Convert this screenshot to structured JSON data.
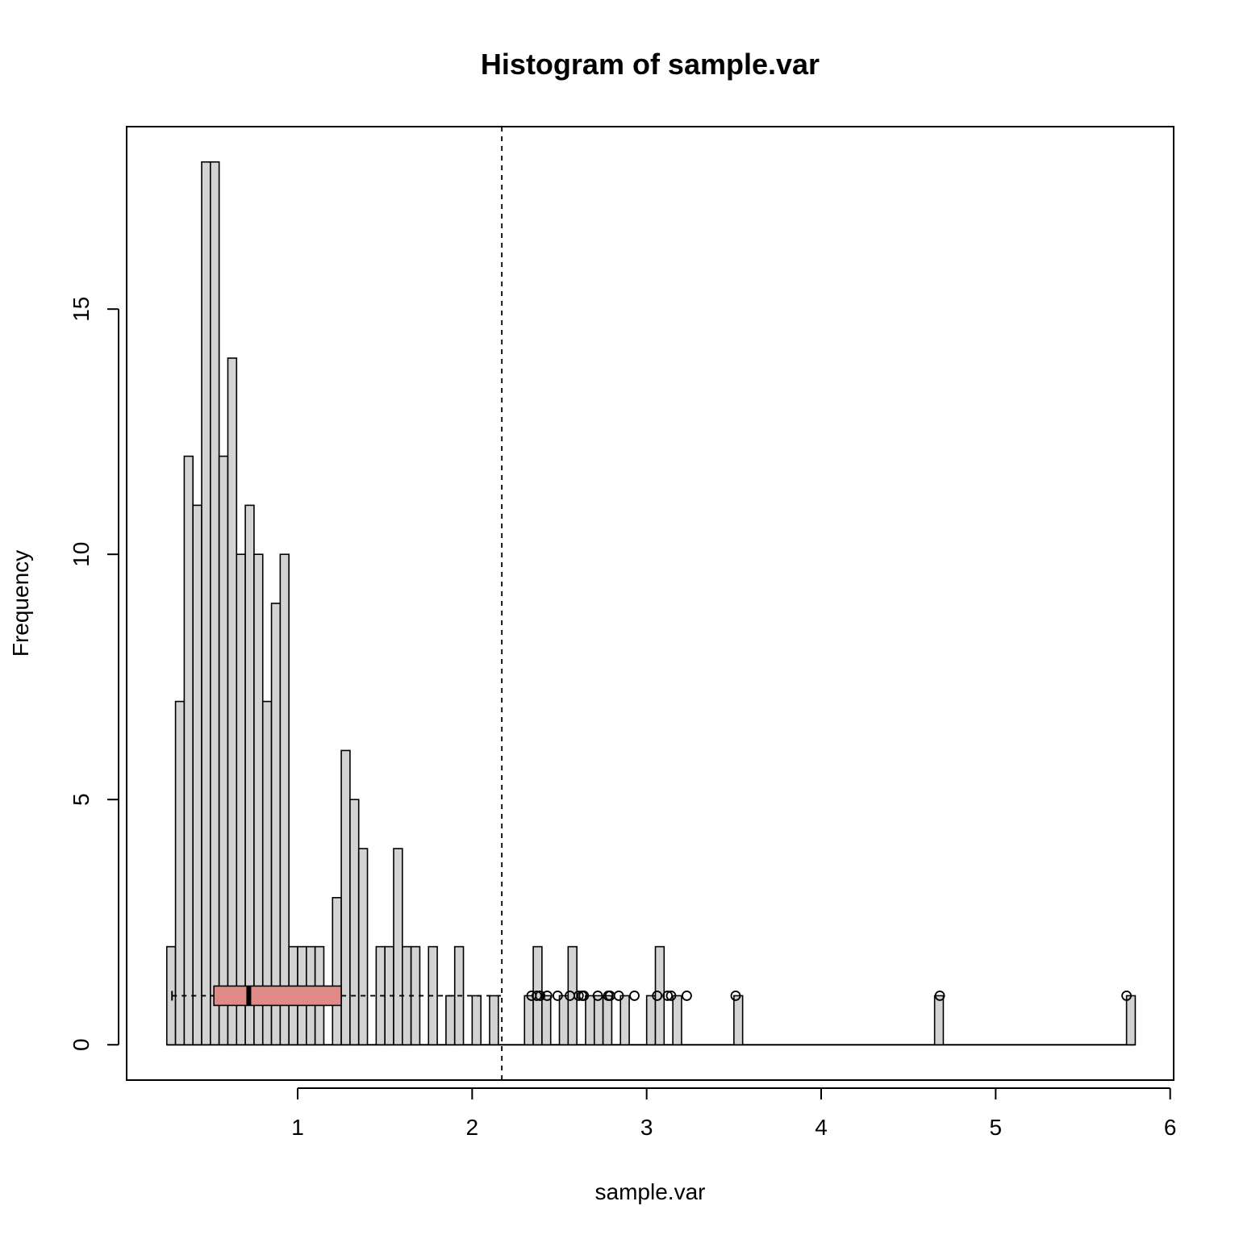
{
  "chart_data": {
    "type": "bar",
    "title": "Histogram of sample.var",
    "xlabel": "sample.var",
    "ylabel": "Frequency",
    "xlim": [
      0.02,
      6.02
    ],
    "ylim": [
      -0.72,
      18.72
    ],
    "x_ticks": [
      1,
      2,
      3,
      4,
      5,
      6
    ],
    "y_ticks": [
      0,
      5,
      10,
      15
    ],
    "bin_width": 0.05,
    "bins_start": 0.25,
    "counts": [
      2,
      7,
      12,
      11,
      18,
      18,
      12,
      14,
      10,
      11,
      10,
      7,
      9,
      10,
      2,
      2,
      2,
      2,
      0,
      3,
      6,
      5,
      4,
      0,
      2,
      2,
      4,
      2,
      2,
      0,
      2,
      0,
      1,
      2,
      0,
      1,
      0,
      1,
      0,
      0,
      0,
      1,
      2,
      1,
      0,
      1,
      2,
      0,
      1,
      1,
      1,
      0,
      1,
      0,
      0,
      1,
      2,
      0,
      1,
      0,
      0,
      0,
      0,
      0,
      0,
      1,
      0,
      0,
      0,
      0,
      0,
      0,
      0,
      0,
      0,
      0,
      0,
      0,
      0,
      0,
      0,
      0,
      0,
      0,
      0,
      0,
      0,
      0,
      1,
      0,
      0,
      0,
      0,
      0,
      0,
      0,
      0,
      0,
      0,
      0,
      0,
      0,
      0,
      0,
      0,
      0,
      0,
      0,
      0,
      0,
      1
    ],
    "reference_line": {
      "x": 2.17,
      "style": "dashed"
    },
    "boxplot": {
      "y": 1,
      "whisker_low": 0.28,
      "q1": 0.52,
      "median": 0.72,
      "q3": 1.25,
      "whisker_high": 2.17,
      "box_color": "#e08a88",
      "outliers": [
        2.34,
        2.37,
        2.39,
        2.43,
        2.49,
        2.56,
        2.61,
        2.63,
        2.64,
        2.72,
        2.78,
        2.79,
        2.84,
        2.93,
        3.06,
        3.12,
        3.14,
        3.23,
        3.51,
        4.68,
        5.75
      ]
    },
    "bar_fill": "#d3d3d3",
    "grid": false,
    "legend": "none"
  }
}
